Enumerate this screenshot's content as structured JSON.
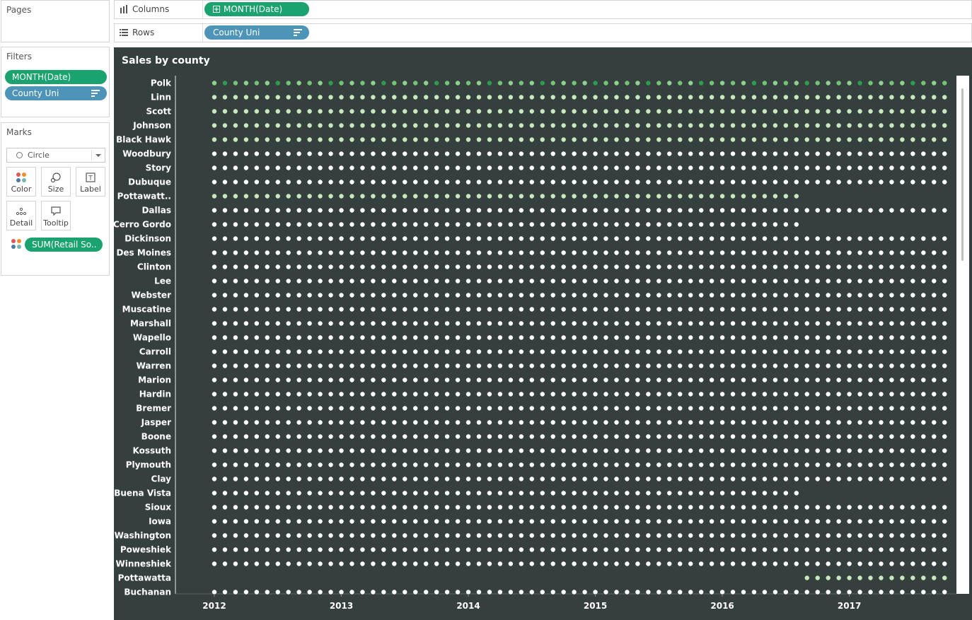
{
  "pages_card": {
    "title": "Pages"
  },
  "filters_card": {
    "title": "Filters",
    "pills": [
      {
        "label": "MONTH(Date)",
        "color": "#1aa36f"
      },
      {
        "label": "County Uni",
        "color": "#4d94b8"
      }
    ]
  },
  "marks_card": {
    "title": "Marks",
    "mark_type": "Circle",
    "buttons": [
      {
        "label": "Color",
        "icon": "color-dots-icon"
      },
      {
        "label": "Size",
        "icon": "size-icon"
      },
      {
        "label": "Label",
        "icon": "label-icon"
      },
      {
        "label": "Detail",
        "icon": "detail-dots-icon"
      },
      {
        "label": "Tooltip",
        "icon": "tooltip-icon"
      }
    ],
    "color_pill": "SUM(Retail So.."
  },
  "shelves": {
    "columns": {
      "label": "Columns",
      "pill": "MONTH(Date)",
      "icon": "columns-icon"
    },
    "rows": {
      "label": "Rows",
      "pill": "County Uni",
      "icon": "rows-icon"
    }
  },
  "colors": {
    "panel_bg": "#353f3e",
    "dot_white": "#ffffff",
    "dot_light_green": "#c7e9c0",
    "dot_mid_green": "#74c476",
    "dot_dark_green": "#2e9b4e",
    "pill_green": "#1aa36f",
    "pill_blue": "#4d94b8"
  },
  "chart_data": {
    "type": "scatter",
    "title": "Sales by county",
    "mark": "circle",
    "x_ticks": [
      "2012",
      "2013",
      "2014",
      "2015",
      "2016",
      "2017"
    ],
    "months_per_row": 70,
    "counties": [
      {
        "name": "Polk",
        "start": 0,
        "end": 70,
        "shade": "mid"
      },
      {
        "name": "Linn",
        "start": 0,
        "end": 70,
        "shade": "light"
      },
      {
        "name": "Scott",
        "start": 0,
        "end": 70,
        "shade": "light"
      },
      {
        "name": "Johnson",
        "start": 0,
        "end": 70,
        "shade": "light"
      },
      {
        "name": "Black Hawk",
        "start": 0,
        "end": 70,
        "shade": "light"
      },
      {
        "name": "Woodbury",
        "start": 0,
        "end": 70,
        "shade": "white"
      },
      {
        "name": "Story",
        "start": 0,
        "end": 70,
        "shade": "white"
      },
      {
        "name": "Dubuque",
        "start": 0,
        "end": 70,
        "shade": "white"
      },
      {
        "name": "Pottawatt..",
        "start": 0,
        "end": 56,
        "shade": "light"
      },
      {
        "name": "Dallas",
        "start": 0,
        "end": 70,
        "shade": "white"
      },
      {
        "name": "Cerro Gordo",
        "start": 0,
        "end": 56,
        "shade": "white"
      },
      {
        "name": "Dickinson",
        "start": 0,
        "end": 70,
        "shade": "white"
      },
      {
        "name": "Des Moines",
        "start": 0,
        "end": 70,
        "shade": "white"
      },
      {
        "name": "Clinton",
        "start": 0,
        "end": 70,
        "shade": "white"
      },
      {
        "name": "Lee",
        "start": 0,
        "end": 70,
        "shade": "white"
      },
      {
        "name": "Webster",
        "start": 0,
        "end": 70,
        "shade": "white"
      },
      {
        "name": "Muscatine",
        "start": 0,
        "end": 70,
        "shade": "white"
      },
      {
        "name": "Marshall",
        "start": 0,
        "end": 70,
        "shade": "white"
      },
      {
        "name": "Wapello",
        "start": 0,
        "end": 70,
        "shade": "white"
      },
      {
        "name": "Carroll",
        "start": 0,
        "end": 70,
        "shade": "white"
      },
      {
        "name": "Warren",
        "start": 0,
        "end": 70,
        "shade": "white"
      },
      {
        "name": "Marion",
        "start": 0,
        "end": 70,
        "shade": "white"
      },
      {
        "name": "Hardin",
        "start": 0,
        "end": 70,
        "shade": "white"
      },
      {
        "name": "Bremer",
        "start": 0,
        "end": 70,
        "shade": "white"
      },
      {
        "name": "Jasper",
        "start": 0,
        "end": 70,
        "shade": "white"
      },
      {
        "name": "Boone",
        "start": 0,
        "end": 70,
        "shade": "white"
      },
      {
        "name": "Kossuth",
        "start": 0,
        "end": 70,
        "shade": "white"
      },
      {
        "name": "Plymouth",
        "start": 0,
        "end": 70,
        "shade": "white"
      },
      {
        "name": "Clay",
        "start": 0,
        "end": 70,
        "shade": "white"
      },
      {
        "name": "Buena Vista",
        "start": 0,
        "end": 56,
        "shade": "white"
      },
      {
        "name": "Sioux",
        "start": 0,
        "end": 70,
        "shade": "white"
      },
      {
        "name": "Iowa",
        "start": 0,
        "end": 70,
        "shade": "white"
      },
      {
        "name": "Washington",
        "start": 0,
        "end": 70,
        "shade": "white"
      },
      {
        "name": "Poweshiek",
        "start": 0,
        "end": 70,
        "shade": "white"
      },
      {
        "name": "Winneshiek",
        "start": 0,
        "end": 70,
        "shade": "white"
      },
      {
        "name": "Pottawatta",
        "start": 56,
        "end": 70,
        "shade": "light"
      },
      {
        "name": "Buchanan",
        "start": 0,
        "end": 70,
        "shade": "white"
      }
    ]
  }
}
